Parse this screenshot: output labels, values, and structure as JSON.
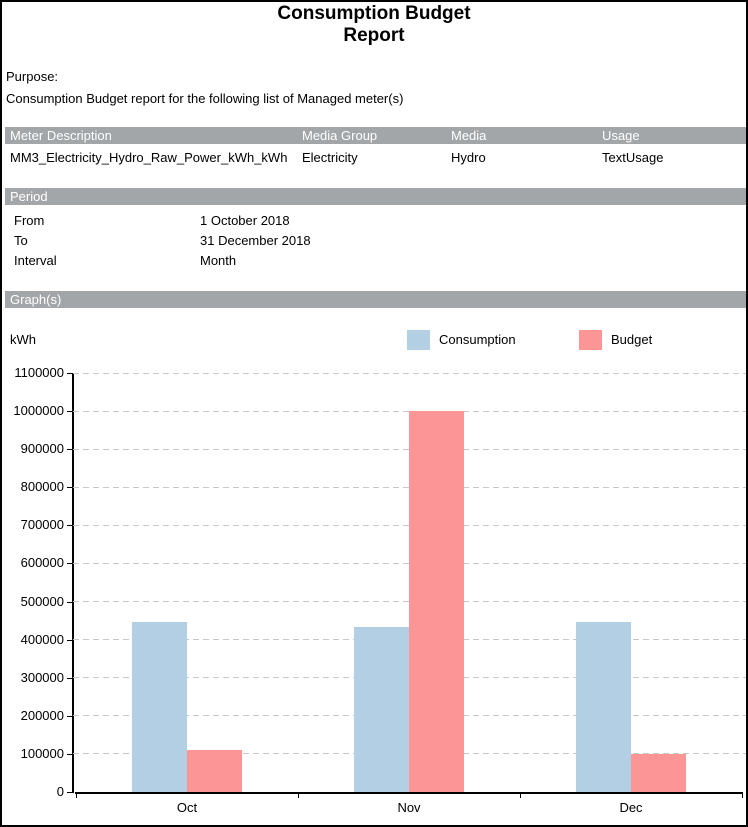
{
  "title": {
    "text": "Consumption Budget\nReport"
  },
  "purpose": {
    "label": "Purpose:",
    "text": "Consumption Budget report for the following list of Managed meter(s)"
  },
  "meter_table": {
    "headers": [
      "Meter Description",
      "Media Group",
      "Media",
      "Usage"
    ],
    "rows": [
      [
        "MM3_Electricity_Hydro_Raw_Power_kWh_kWh",
        "Electricity",
        "Hydro",
        "TextUsage"
      ]
    ]
  },
  "period": {
    "header": "Period",
    "rows": [
      {
        "label": "From",
        "value": "1 October 2018"
      },
      {
        "label": "To",
        "value": "31 December 2018"
      },
      {
        "label": "Interval",
        "value": "Month"
      }
    ]
  },
  "graphs_section": {
    "header": "Graph(s)",
    "unit_label": "kWh"
  },
  "chart_data": {
    "type": "bar",
    "categories": [
      "Oct",
      "Nov",
      "Dec"
    ],
    "series": [
      {
        "name": "Consumption",
        "color": "#b3cfe4",
        "values": [
          445000,
          433000,
          446000
        ]
      },
      {
        "name": "Budget",
        "color": "#fc9595",
        "values": [
          110000,
          1000000,
          100000
        ]
      }
    ],
    "title": "",
    "xlabel": "",
    "ylabel": "kWh",
    "ylim": [
      0,
      1100000
    ],
    "ytick_step": 100000,
    "grid": "dashed horizontal",
    "legend_position": "top"
  },
  "colors": {
    "section_header_bg": "#a3a6a8",
    "section_header_text": "#ffffff",
    "grid_line": "#c8c8c8",
    "axis": "#000000",
    "consumption": "#b3cfe4",
    "budget": "#fc9595"
  }
}
